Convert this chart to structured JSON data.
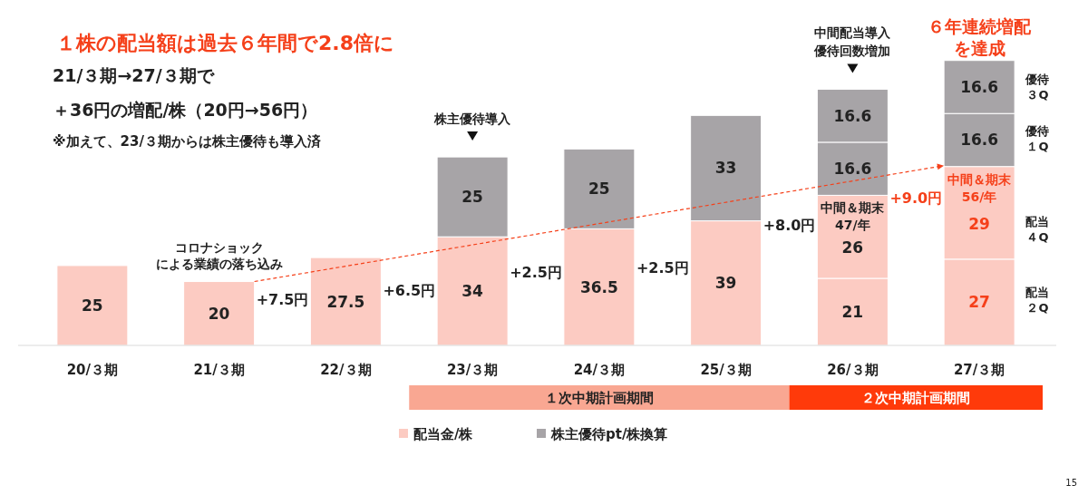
{
  "chart_data": {
    "type": "bar",
    "stacked": true,
    "title": "１株の配当額は過去６年間で2.8倍に",
    "subtitle": "21/３期→27/３期で＋36円の増配/株（20円→56円）",
    "categories": [
      "20/３期",
      "21/３期",
      "22/３期",
      "23/３期",
      "24/３期",
      "25/３期",
      "26/３期",
      "27/３期"
    ],
    "series": [
      {
        "name": "配当金/株",
        "color": "#fccbc2",
        "values": [
          25,
          20,
          27.5,
          34,
          36.5,
          39,
          21,
          27
        ]
      },
      {
        "color": "#fccbc2",
        "values": [
          null,
          null,
          null,
          null,
          null,
          null,
          26,
          29
        ]
      },
      {
        "name": "株主優待pt/株換算",
        "color": "#a7a4a7",
        "values": [
          null,
          null,
          null,
          25,
          25,
          33,
          16.6,
          16.6
        ]
      },
      {
        "color": "#a7a4a7",
        "values": [
          null,
          null,
          null,
          null,
          null,
          null,
          16.6,
          16.6
        ]
      }
    ],
    "data_labels": true,
    "legend": "bottom",
    "annotations": [
      {
        "text": "コロナショックによる業績の落ち込み",
        "x": "21/３期",
        "y": 20
      },
      {
        "text": "株主優待導入",
        "x": "23/３期",
        "y": 59
      },
      {
        "text": "中間配当導入優待回数増加",
        "x": "26/３期",
        "y": 80.2
      },
      {
        "text": "６年連続増配を達成",
        "x": "27/３期",
        "y": 89.2
      },
      "+7.5円",
      "+6.5円",
      "+2.5円",
      "+2.5円",
      "+8.0円",
      "+9.0円",
      {
        "text": "中間＆期末47/年",
        "x": "26/３期",
        "y": 47
      },
      {
        "text": "中間＆期末56/年",
        "x": "27/３期",
        "y": 56
      },
      "優待３Q",
      "優待１Q",
      "配当４Q",
      "配当２Q",
      "※加えて、23/３期からは株主優待も導入済",
      "15",
      "１次中期計画期間",
      "２次中期計画期間"
    ]
  }
}
